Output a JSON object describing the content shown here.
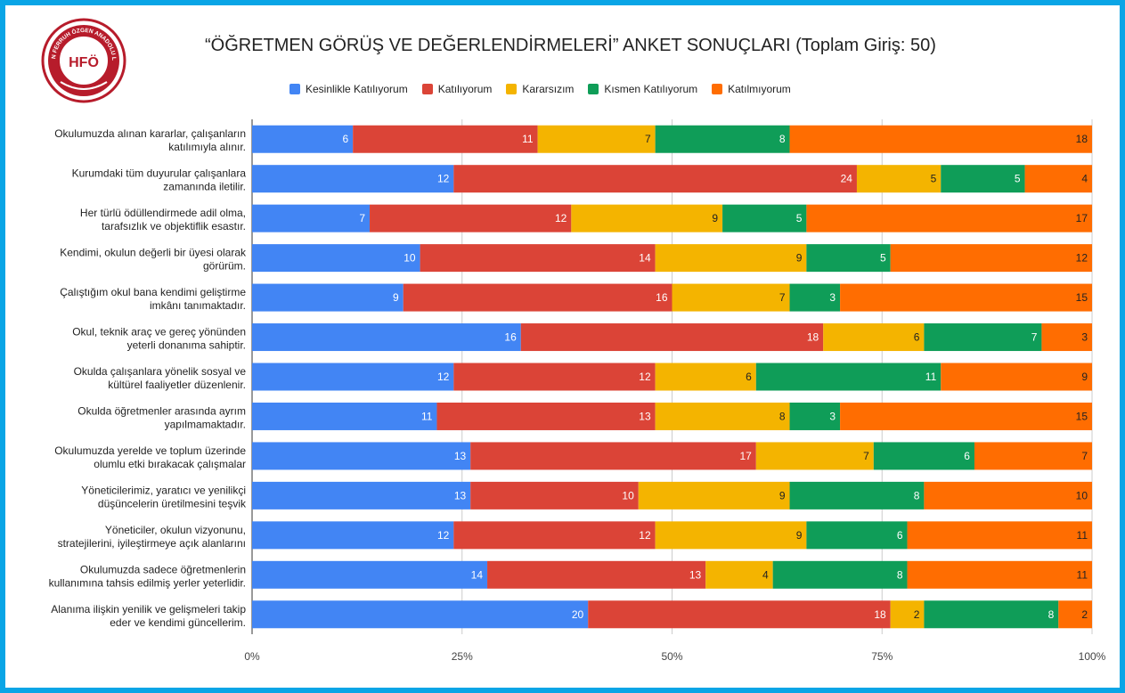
{
  "chart_data": {
    "type": "bar",
    "orientation": "horizontal",
    "stacked": "percent",
    "title": "“ÖĞRETMEN GÖRÜŞ VE DEĞERLENDİRMELERİ” ANKET SONUÇLARI (Toplam Giriş: 50)",
    "legend_position": "top",
    "grid": true,
    "xlim": [
      0,
      100
    ],
    "x_ticks": [
      "0%",
      "25%",
      "50%",
      "75%",
      "100%"
    ],
    "categories": [
      [
        "Okulumuzda alınan kararlar, çalışanların",
        "katılımıyla alınır."
      ],
      [
        "Kurumdaki tüm duyurular çalışanlara",
        "zamanında iletilir."
      ],
      [
        "Her türlü ödüllendirmede adil olma,",
        "tarafsızlık ve objektiflik esastır."
      ],
      [
        "Kendimi, okulun değerli bir üyesi olarak",
        "görürüm."
      ],
      [
        "Çalıştığım okul bana kendimi geliştirme",
        "imkânı tanımaktadır."
      ],
      [
        "Okul, teknik araç ve gereç yönünden",
        "yeterli donanıma sahiptir."
      ],
      [
        "Okulda çalışanlara yönelik sosyal ve",
        "kültürel faaliyetler düzenlenir."
      ],
      [
        "Okulda öğretmenler arasında ayrım",
        "yapılmamaktadır."
      ],
      [
        "Okulumuzda yerelde ve toplum üzerinde",
        "olumlu etki bırakacak çalışmalar"
      ],
      [
        "Yöneticilerimiz, yaratıcı ve yenilikçi",
        "düşüncelerin üretilmesini teşvik"
      ],
      [
        "Yöneticiler, okulun vizyonunu,",
        "stratejilerini, iyileştirmeye açık alanlarını"
      ],
      [
        "Okulumuzda sadece öğretmenlerin",
        "kullanımına tahsis edilmiş yerler yeterlidir."
      ],
      [
        "Alanıma ilişkin yenilik ve gelişmeleri takip",
        "eder ve kendimi güncellerim."
      ]
    ],
    "series": [
      {
        "name": "Kesinlikle Katılıyorum",
        "color": "#4285f4",
        "label_color": "#ffffff",
        "values": [
          6,
          12,
          7,
          10,
          9,
          16,
          12,
          11,
          13,
          13,
          12,
          14,
          20
        ]
      },
      {
        "name": "Katılıyorum",
        "color": "#db4437",
        "label_color": "#ffffff",
        "values": [
          11,
          24,
          12,
          14,
          16,
          18,
          12,
          13,
          17,
          10,
          12,
          13,
          18
        ]
      },
      {
        "name": "Kararsızım",
        "color": "#f4b400",
        "label_color": "#222222",
        "values": [
          7,
          5,
          9,
          9,
          7,
          6,
          6,
          8,
          7,
          9,
          9,
          4,
          2
        ]
      },
      {
        "name": "Kısmen Katılıyorum",
        "color": "#0f9d58",
        "label_color": "#ffffff",
        "values": [
          8,
          5,
          5,
          5,
          3,
          7,
          11,
          3,
          6,
          8,
          6,
          8,
          8
        ]
      },
      {
        "name": "Katılmıyorum",
        "color": "#ff6d01",
        "label_color": "#222222",
        "values": [
          18,
          4,
          17,
          12,
          15,
          3,
          9,
          15,
          7,
          10,
          11,
          11,
          2
        ]
      }
    ]
  },
  "logo": {
    "text": "HASAN FERRUH ÖZGEN ANADOLU LİSESİ",
    "monogram": "HFÖ"
  }
}
